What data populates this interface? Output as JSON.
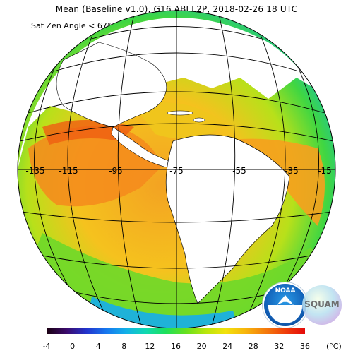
{
  "title": "Mean (Baseline v1.0), G16 ABI L2P, 2018-02-26 18 UTC",
  "subtitle": "Sat Zen Angle < 67°",
  "meridian_labels": [
    "-135",
    "-115",
    "-95",
    "-75",
    "-55",
    "-35",
    "-15"
  ],
  "colorbar": {
    "ticks": [
      "-4",
      "0",
      "4",
      "8",
      "12",
      "16",
      "20",
      "24",
      "28",
      "32",
      "36"
    ],
    "unit": "(°C)",
    "min": -4,
    "max": 36
  },
  "logos": {
    "noaa": "NOAA",
    "squam": "SQUAM"
  },
  "colors": {
    "ocean_warm": "#f7a520",
    "ocean_hot": "#ef5a10",
    "ocean_mild": "#d6e81a",
    "ocean_cool": "#33d44a",
    "ocean_cold": "#13b8d8",
    "land": "#ffffff",
    "grid": "#000000"
  }
}
